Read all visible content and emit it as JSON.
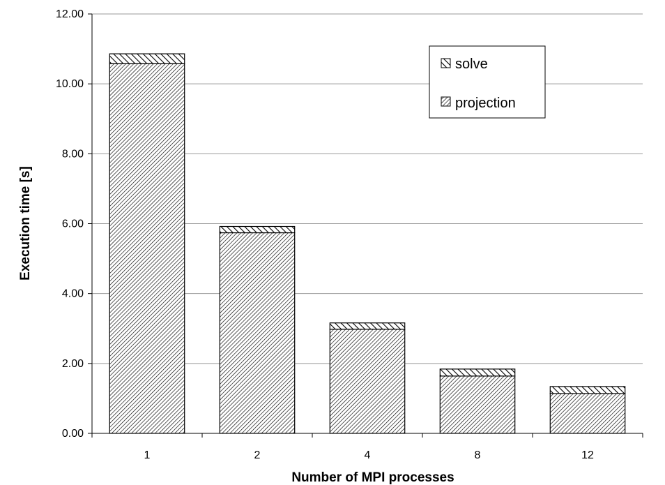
{
  "chart_data": {
    "type": "bar",
    "stacked": true,
    "categories": [
      "1",
      "2",
      "4",
      "8",
      "12"
    ],
    "series": [
      {
        "name": "projection",
        "values": [
          10.58,
          5.74,
          2.98,
          1.64,
          1.14
        ],
        "pattern": "fine-diagonal-hatch"
      },
      {
        "name": "solve",
        "values": [
          0.28,
          0.18,
          0.18,
          0.2,
          0.2
        ],
        "pattern": "coarse-diagonal-hatch"
      }
    ],
    "title": "",
    "xlabel": "Number of MPI processes",
    "ylabel": "Execution time [s]",
    "ylim": [
      0,
      12
    ],
    "yticks": [
      "0.00",
      "2.00",
      "4.00",
      "6.00",
      "8.00",
      "10.00",
      "12.00"
    ],
    "grid": true,
    "legend": {
      "position": "top-right",
      "entries": [
        "solve",
        "projection"
      ]
    },
    "colors": {
      "bar_fill": "#ffffff",
      "bar_stroke": "#000000",
      "hatch": "#000000",
      "grid": "#999999"
    }
  }
}
